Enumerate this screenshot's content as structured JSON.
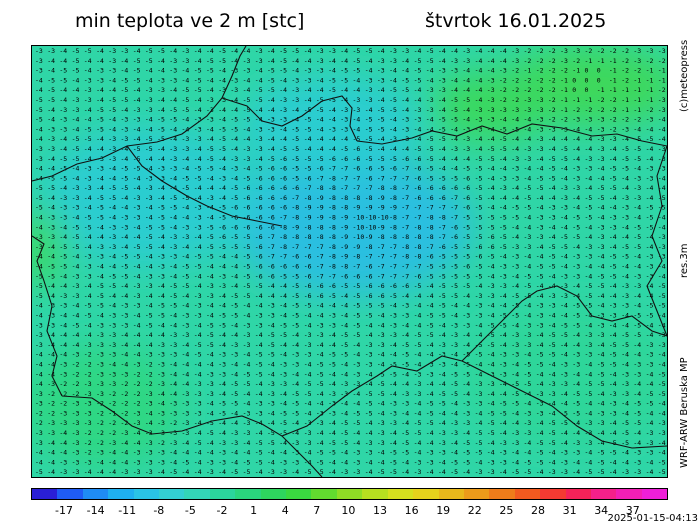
{
  "header": {
    "title": "min teplota ve 2 m [stc]",
    "date": "štvrtok 16.01.2025"
  },
  "side_labels": {
    "copyright": "(c)meteopress",
    "resolution": "res.3m",
    "model": "WRF-ARW Beruska MP"
  },
  "legend": {
    "tick_labels": [
      "-17",
      "-14",
      "-11",
      "-8",
      "-5",
      "-2",
      "1",
      "4",
      "7",
      "10",
      "13",
      "16",
      "19",
      "22",
      "25",
      "28",
      "31",
      "34",
      "37"
    ],
    "colors": [
      "#2a1fd6",
      "#1f5cf5",
      "#1f8cf5",
      "#1fb0f0",
      "#2ac4e6",
      "#33d0d3",
      "#33d6b8",
      "#2bd69c",
      "#2ad67d",
      "#2ed65e",
      "#3ad940",
      "#62db2f",
      "#8fdd25",
      "#b7df20",
      "#d6e01e",
      "#e6d21c",
      "#e9b81b",
      "#ec9b1a",
      "#ef7c1a",
      "#f25a1f",
      "#f43a32",
      "#f52259",
      "#f5208a",
      "#f21fb5",
      "#ee1fd8"
    ]
  },
  "timestamp": "2025-01-15-04:13",
  "map": {
    "field_colors": {
      "cold_core": "#2cbfe0",
      "cold": "#2ccdd0",
      "neutral": "#2fd6a7",
      "mild": "#2fd784",
      "warm": "#3cd85b"
    }
  }
}
